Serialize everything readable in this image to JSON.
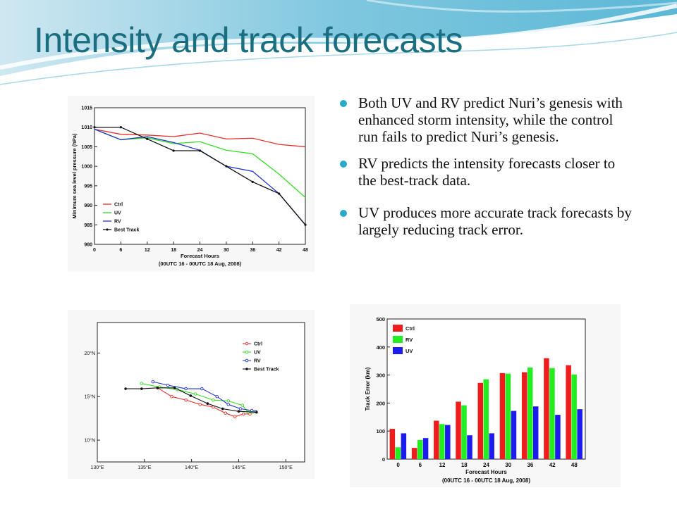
{
  "slide": {
    "title": "Intensity and track forecasts",
    "bullets": [
      "Both UV and RV predict Nuri’s genesis with enhanced storm intensity, while the control run fails to predict Nuri’s genesis.",
      "RV predicts the intensity forecasts closer to the best-track data.",
      "UV produces more accurate track forecasts by largely reducing track error."
    ],
    "colors": {
      "title": "#1b6e80",
      "bullet": "#2aa9c6"
    }
  },
  "chart_data": [
    {
      "type": "line",
      "title": "",
      "xlabel": "Forecast Hours",
      "subtitle": "(00UTC 16 - 00UTC 18 Aug, 2008)",
      "ylabel": "Minimum sea level pressure (hPa)",
      "x": [
        0,
        6,
        12,
        18,
        24,
        30,
        36,
        42,
        48
      ],
      "xlim": [
        0,
        48
      ],
      "ylim": [
        980,
        1015
      ],
      "xticks": [
        0,
        6,
        12,
        18,
        24,
        30,
        36,
        42,
        48
      ],
      "yticks": [
        980,
        985,
        990,
        995,
        1000,
        1005,
        1010,
        1015
      ],
      "legend": "bottom-left",
      "series": [
        {
          "name": "Ctrl",
          "color": "#e8302a",
          "marker": false,
          "values": [
            1009.5,
            1008.2,
            1008.0,
            1007.6,
            1008.5,
            1007.0,
            1007.2,
            1005.6,
            1005.0
          ]
        },
        {
          "name": "UV",
          "color": "#33dd22",
          "marker": false,
          "values": [
            1009.5,
            1006.8,
            1007.3,
            1005.8,
            1006.3,
            1004.1,
            1003.2,
            998.0,
            992.0
          ]
        },
        {
          "name": "RV",
          "color": "#2233cc",
          "marker": false,
          "values": [
            1009.5,
            1006.8,
            1007.6,
            1006.1,
            1004.1,
            1000.0,
            998.7,
            993.0,
            985.0
          ]
        },
        {
          "name": "Best Track",
          "color": "#111111",
          "marker": true,
          "values": [
            1010.0,
            1010.0,
            1007.0,
            1004.0,
            1004.0,
            1000.0,
            996.0,
            993.0,
            985.0
          ]
        }
      ]
    },
    {
      "type": "scatter",
      "title": "",
      "xlim": [
        130,
        152
      ],
      "ylim": [
        7.5,
        23.5
      ],
      "xticks": [
        130,
        135,
        140,
        145,
        150
      ],
      "xtick_labels": [
        "130°E",
        "135°E",
        "140°E",
        "145°E",
        "150°E"
      ],
      "yticks": [
        10,
        15,
        20
      ],
      "ytick_labels": [
        "10°N",
        "15°N",
        "20°N"
      ],
      "legend": "top-right",
      "series": [
        {
          "name": "Ctrl",
          "color": "#e8302a",
          "points": [
            [
              136.4,
              16.0
            ],
            [
              137.9,
              15.0
            ],
            [
              139.4,
              14.6
            ],
            [
              140.9,
              14.1
            ],
            [
              142.3,
              13.8
            ],
            [
              143.6,
              13.1
            ],
            [
              144.6,
              12.7
            ],
            [
              145.5,
              13.0
            ],
            [
              146.2,
              13.0
            ]
          ]
        },
        {
          "name": "UV",
          "color": "#33dd22",
          "points": [
            [
              134.7,
              16.5
            ],
            [
              136.6,
              16.1
            ],
            [
              138.5,
              15.8
            ],
            [
              140.4,
              15.3
            ],
            [
              142.3,
              14.6
            ],
            [
              143.9,
              14.5
            ],
            [
              145.4,
              14.0
            ],
            [
              146.0,
              13.2
            ],
            [
              146.5,
              13.2
            ]
          ]
        },
        {
          "name": "RV",
          "color": "#2233cc",
          "points": [
            [
              135.9,
              16.7
            ],
            [
              137.5,
              16.3
            ],
            [
              139.4,
              15.9
            ],
            [
              141.1,
              15.9
            ],
            [
              142.7,
              15.0
            ],
            [
              143.9,
              14.1
            ],
            [
              145.2,
              13.6
            ],
            [
              146.4,
              13.4
            ],
            [
              146.8,
              13.3
            ]
          ]
        },
        {
          "name": "Best Track",
          "color": "#111111",
          "points": [
            [
              133.0,
              15.9
            ],
            [
              134.7,
              15.9
            ],
            [
              136.4,
              16.0
            ],
            [
              138.2,
              16.0
            ],
            [
              139.9,
              15.1
            ],
            [
              141.7,
              14.2
            ],
            [
              143.3,
              13.6
            ],
            [
              145.0,
              13.3
            ],
            [
              146.9,
              13.2
            ]
          ]
        }
      ]
    },
    {
      "type": "bar",
      "title": "",
      "xlabel": "Forecast Hours",
      "subtitle": "(00UTC 16 - 00UTC 18 Aug, 2008)",
      "ylabel": "Track Error (km)",
      "categories": [
        "0",
        "6",
        "12",
        "18",
        "24",
        "30",
        "36",
        "42",
        "48"
      ],
      "ylim": [
        0,
        500
      ],
      "yticks": [
        0,
        100,
        200,
        300,
        400,
        500
      ],
      "legend": "top-left",
      "series": [
        {
          "name": "Ctrl",
          "color": "#ee1c1c",
          "values": [
            108,
            40,
            137,
            205,
            272,
            307,
            310,
            360,
            335
          ]
        },
        {
          "name": "RV",
          "color": "#22ee22",
          "values": [
            42,
            68,
            125,
            192,
            285,
            305,
            327,
            325,
            302
          ]
        },
        {
          "name": "UV",
          "color": "#1c1cee",
          "values": [
            92,
            75,
            122,
            85,
            92,
            172,
            188,
            158,
            178
          ]
        }
      ]
    }
  ]
}
